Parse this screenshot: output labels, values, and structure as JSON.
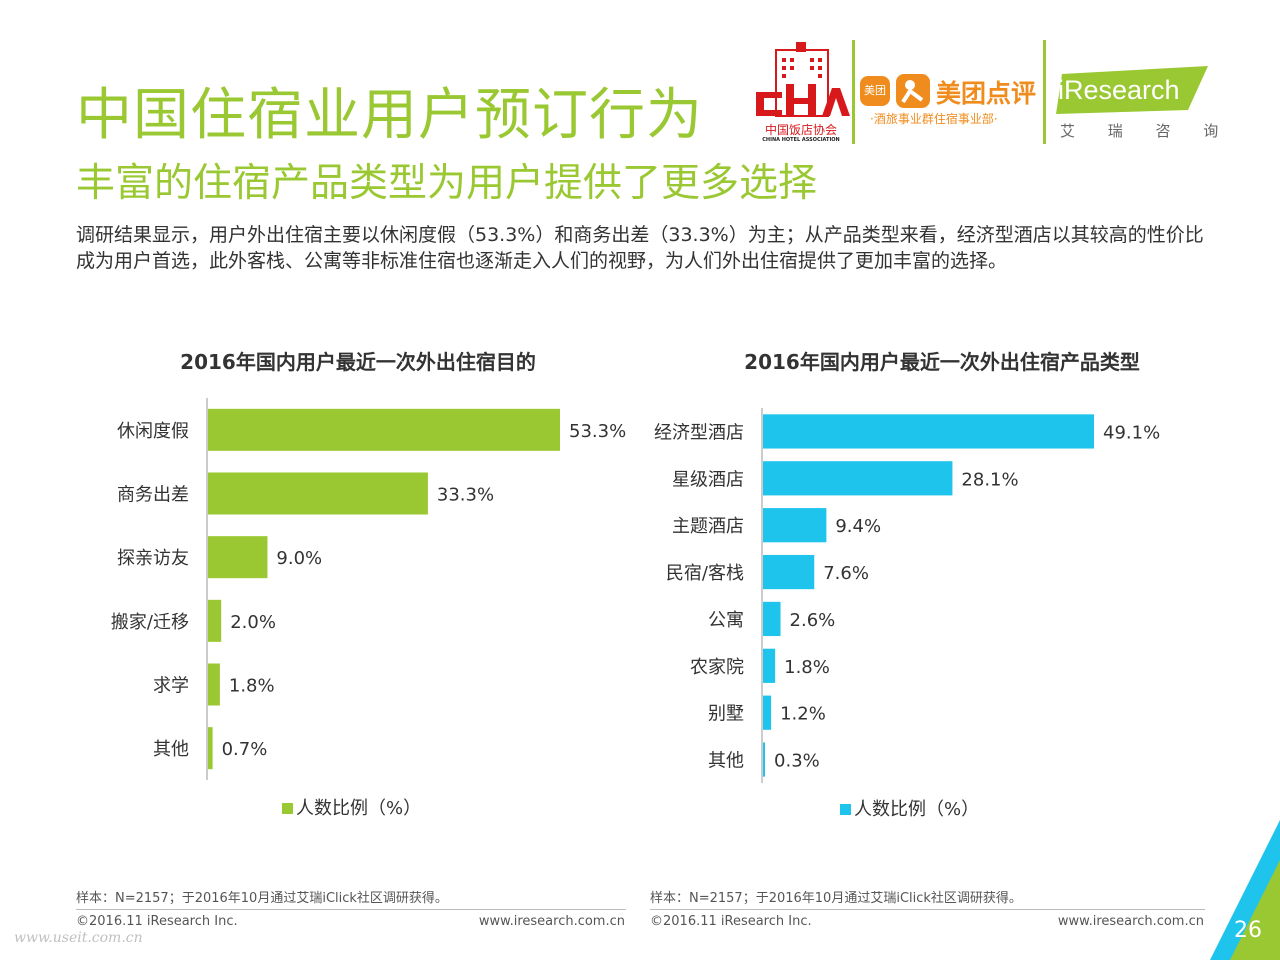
{
  "title": "中国住宿业用户预订行为",
  "subtitle": "丰富的住宿产品类型为用户提供了更多选择",
  "intro": "调研结果显示，用户外出住宿主要以休闲度假（53.3%）和商务出差（33.3%）为主；从产品类型来看，经济型酒店以其较高的性价比成为用户首选，此外客栈、公寓等非标准住宿也逐渐走入人们的视野，为人们外出住宿提供了更加丰富的选择。",
  "logos": {
    "cha_cn": "中国饭店协会",
    "cha_en": "CHINA HOTEL ASSOCIATION",
    "meituan_badge": "美团",
    "meituan_name": "美团点评",
    "meituan_dept": "·酒旅事业群住宿事业部·",
    "iresearch_en": "iResearch",
    "iresearch_cn": "艾 瑞 咨 询",
    "colors": {
      "cha_red": "#d7191c",
      "meituan_orange": "#f08c1e",
      "iresearch_green": "#9ac832"
    }
  },
  "chart_data": [
    {
      "type": "bar",
      "orientation": "horizontal",
      "title": "2016年国内用户最近一次外出住宿目的",
      "categories": [
        "休闲度假",
        "商务出差",
        "探亲访友",
        "搬家/迁移",
        "求学",
        "其他"
      ],
      "values": [
        53.3,
        33.3,
        9.0,
        2.0,
        1.8,
        0.7
      ],
      "labels": [
        "53.3%",
        "33.3%",
        "9.0%",
        "2.0%",
        "1.8%",
        "0.7%"
      ],
      "legend": "人数比例（%）",
      "color": "#9ac832",
      "xlim": [
        0,
        60
      ],
      "grid": false
    },
    {
      "type": "bar",
      "orientation": "horizontal",
      "title": "2016年国内用户最近一次外出住宿产品类型",
      "categories": [
        "经济型酒店",
        "星级酒店",
        "主题酒店",
        "民宿/客栈",
        "公寓",
        "农家院",
        "别墅",
        "其他"
      ],
      "values": [
        49.1,
        28.1,
        9.4,
        7.6,
        2.6,
        1.8,
        1.2,
        0.3
      ],
      "labels": [
        "49.1%",
        "28.1%",
        "9.4%",
        "7.6%",
        "2.6%",
        "1.8%",
        "1.2%",
        "0.3%"
      ],
      "legend": "人数比例（%）",
      "color": "#1ec4ec",
      "xlim": [
        0,
        55
      ],
      "grid": false
    }
  ],
  "footer": {
    "left_note": "样本：N=2157；于2016年10月通过艾瑞iClick社区调研获得。",
    "right_note": "样本：N=2157；于2016年10月通过艾瑞iClick社区调研获得。",
    "left_copy": "©2016.11 iResearch Inc.",
    "left_url": "www.iresearch.com.cn",
    "right_copy": "©2016.11 iResearch Inc.",
    "right_url": "www.iresearch.com.cn",
    "page_number": "26",
    "watermark": "www.useit.com.cn"
  }
}
